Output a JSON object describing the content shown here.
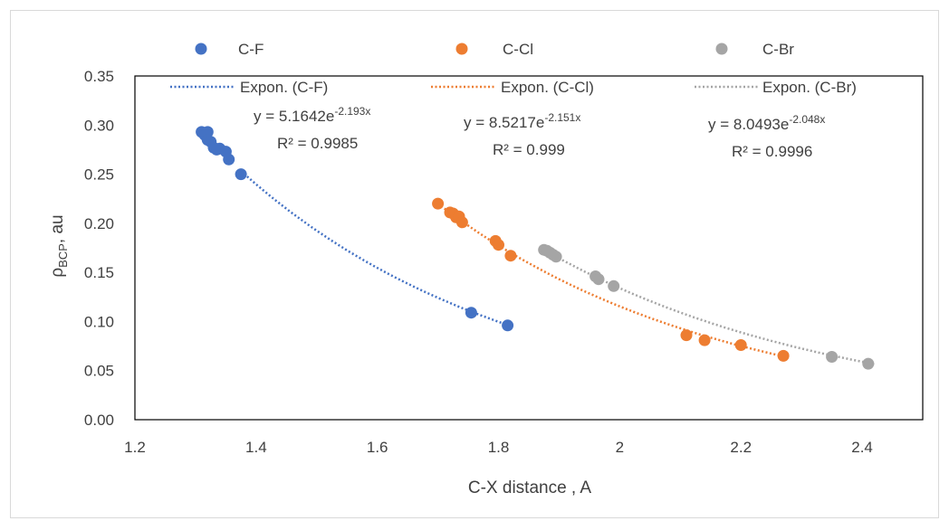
{
  "chart_data": {
    "type": "scatter",
    "xlabel": "C-X distance , A",
    "ylabel_main": "ρ",
    "ylabel_sub": "BCP",
    "ylabel_tail": ", au",
    "xlim": [
      1.2,
      2.5
    ],
    "ylim": [
      0,
      0.35
    ],
    "xticks": [
      "1.2",
      "1.4",
      "1.6",
      "1.8",
      "2",
      "2.2",
      "2.4"
    ],
    "xtick_values": [
      1.2,
      1.4,
      1.6,
      1.8,
      2.0,
      2.2,
      2.4
    ],
    "yticks": [
      "0.00",
      "0.05",
      "0.10",
      "0.15",
      "0.20",
      "0.25",
      "0.30",
      "0.35"
    ],
    "ytick_values": [
      0,
      0.05,
      0.1,
      0.15,
      0.2,
      0.25,
      0.3,
      0.35
    ],
    "grid": false,
    "legend_position": "top",
    "series": [
      {
        "name": "C-F",
        "color": "#4472c4",
        "trend_name": "Expon. (C-F)",
        "trend_a": 5.1642,
        "trend_b": -2.193,
        "trend_range": [
          1.38,
          1.82
        ],
        "eq_main": "y = 5.1642e",
        "eq_exp": "-2.193x",
        "r2": "R² = 0.9985",
        "x": [
          1.31,
          1.315,
          1.32,
          1.32,
          1.325,
          1.33,
          1.335,
          1.34,
          1.35,
          1.355,
          1.375,
          1.755,
          1.815
        ],
        "y": [
          0.293,
          0.29,
          0.293,
          0.285,
          0.283,
          0.277,
          0.275,
          0.276,
          0.273,
          0.265,
          0.25,
          0.109,
          0.096
        ]
      },
      {
        "name": "C-Cl",
        "color": "#ed7d31",
        "trend_name": "Expon. (C-Cl)",
        "trend_a": 8.5217,
        "trend_b": -2.151,
        "trend_range": [
          1.7,
          2.27
        ],
        "eq_main": "y = 8.5217e",
        "eq_exp": "-2.151x",
        "r2": "R² = 0.999",
        "x": [
          1.7,
          1.72,
          1.725,
          1.73,
          1.735,
          1.74,
          1.795,
          1.8,
          1.82,
          2.11,
          2.14,
          2.2,
          2.27
        ],
        "y": [
          0.22,
          0.211,
          0.21,
          0.206,
          0.207,
          0.201,
          0.182,
          0.178,
          0.167,
          0.086,
          0.081,
          0.076,
          0.065
        ]
      },
      {
        "name": "C-Br",
        "color": "#a5a5a5",
        "trend_name": "Expon. (C-Br)",
        "trend_a": 8.0493,
        "trend_b": -2.048,
        "trend_range": [
          1.87,
          2.42
        ],
        "eq_main": "y = 8.0493e",
        "eq_exp": "-2.048x",
        "r2": "R² = 0.9996",
        "x": [
          1.875,
          1.88,
          1.885,
          1.89,
          1.895,
          1.96,
          1.965,
          1.99,
          2.35,
          2.41
        ],
        "y": [
          0.173,
          0.172,
          0.17,
          0.168,
          0.166,
          0.146,
          0.143,
          0.136,
          0.064,
          0.057
        ]
      }
    ]
  }
}
